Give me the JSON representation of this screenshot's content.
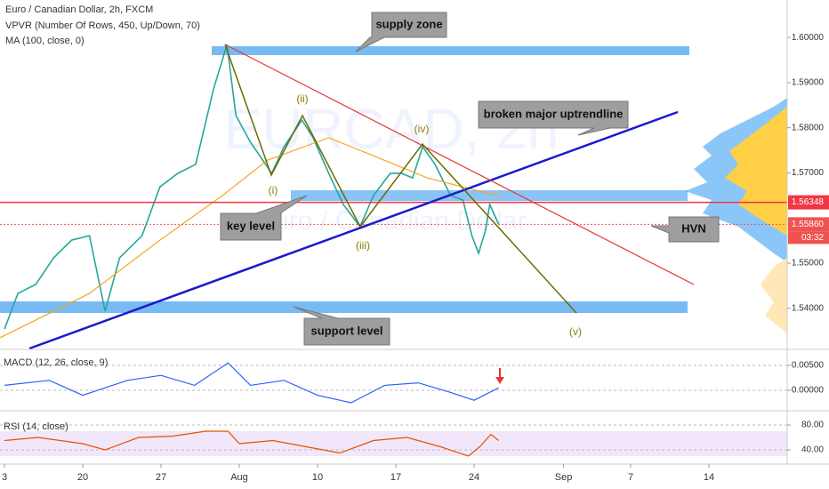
{
  "chart_data": [
    {
      "type": "line",
      "title": "Euro / Canadian Dollar, 2h, FXCM",
      "indicators": [
        "VPVR (Number Of Rows, 450, Up/Down, 70)",
        "MA (100, close, 0)"
      ],
      "watermark": [
        "EURCAD, 2h",
        "Euro / Canadian Dollar"
      ],
      "xlim": [
        12.6,
        83
      ],
      "xticks": [
        {
          "value": 13,
          "label": "3"
        },
        20,
        27,
        {
          "value": 34,
          "label": "Aug"
        },
        {
          "value": 41,
          "label": "10"
        },
        {
          "value": 48,
          "label": "17"
        },
        {
          "value": 55,
          "label": "24"
        },
        {
          "value": 63,
          "label": "Sep"
        },
        {
          "value": 69,
          "label": "7"
        },
        {
          "value": 76,
          "label": "14"
        }
      ],
      "ylim": [
        1.5311,
        1.6083
      ],
      "yticks": [
        {
          "value": 1.6,
          "label": "1.60000"
        },
        {
          "value": 1.59,
          "label": "1.59000"
        },
        {
          "value": 1.58,
          "label": "1.58000"
        },
        {
          "value": 1.57,
          "label": "1.57000"
        },
        {
          "value": 1.55,
          "label": "1.55000"
        },
        {
          "value": 1.54,
          "label": "1.54000"
        }
      ],
      "price_tags": [
        {
          "value": 1.56348,
          "label": "1.56348",
          "color": "#f23645"
        },
        {
          "value": 1.5586,
          "label": "1.55860",
          "color": "#ef5350"
        }
      ],
      "countdown": "03:32",
      "annotations": [
        "supply zone",
        "broken major uptrendline",
        "key level",
        "HVN",
        "support level"
      ],
      "wave_labels": [
        "(i)",
        "(ii)",
        "(iii)",
        "(iv)",
        "(v)"
      ],
      "series": [
        {
          "color": "#26a69a",
          "x": [
            13.0,
            14.2,
            15.8,
            17.4,
            19.0,
            20.6,
            22.0,
            23.3,
            25.3,
            26.9,
            28.5,
            30.1,
            31.7,
            32.9,
            33.7,
            35.0,
            36.9,
            38.0,
            39.6,
            40.6,
            42.0,
            43.3,
            44.8,
            46.0,
            47.5,
            48.5,
            49.5,
            50.4,
            51.5,
            52.9,
            54.0,
            54.8,
            55.4,
            56.0,
            56.4,
            57.2
          ],
          "values": [
            1.5354,
            1.5433,
            1.5453,
            1.5512,
            1.5551,
            1.5561,
            1.5394,
            1.5512,
            1.5561,
            1.5669,
            1.5699,
            1.5719,
            1.5886,
            1.5984,
            1.5827,
            1.5768,
            1.5699,
            1.5758,
            1.5817,
            1.5778,
            1.5699,
            1.563,
            1.5581,
            1.565,
            1.5699,
            1.5699,
            1.5689,
            1.5758,
            1.5719,
            1.565,
            1.564,
            1.5561,
            1.5522,
            1.5571,
            1.563,
            1.5586
          ]
        },
        {
          "color": "#f5a623",
          "x": [
            12.6,
            20.6,
            26.9,
            32.5,
            36.5,
            42.0,
            46.0,
            50.8,
            55.6,
            57.2
          ],
          "values": [
            1.5335,
            1.5433,
            1.5551,
            1.565,
            1.5728,
            1.5778,
            1.5738,
            1.5689,
            1.5659,
            1.565
          ]
        }
      ]
    },
    {
      "type": "line",
      "title": "MACD (12, 26, close, 9)",
      "ylim": [
        -0.00375,
        0.00786
      ],
      "yticks": [
        {
          "value": 0.005,
          "label": "0.00500"
        },
        {
          "value": 0,
          "label": "0.00000"
        }
      ],
      "series": [
        {
          "color": "#2962ff",
          "x": [
            13,
            17,
            20,
            24,
            27,
            30,
            33,
            35,
            38,
            41,
            44,
            47,
            50,
            53,
            55,
            57.2
          ],
          "values": [
            0.001,
            0.002,
            -0.001,
            0.002,
            0.003,
            0.001,
            0.0055,
            0.001,
            0.002,
            -0.001,
            -0.0025,
            0.001,
            0.0015,
            -0.0005,
            -0.002,
            0.0005
          ]
        }
      ]
    },
    {
      "type": "line",
      "title": "RSI (14, close)",
      "ylim": [
        20,
        98.6
      ],
      "yticks": [
        {
          "value": 80,
          "label": "80.00"
        },
        {
          "value": 40,
          "label": "40.00"
        }
      ],
      "band": [
        30,
        70
      ],
      "series": [
        {
          "color": "#e65100",
          "x": [
            13,
            16,
            20,
            22,
            25,
            28,
            31,
            33,
            34,
            37,
            40,
            43,
            46,
            49,
            52,
            54.5,
            55.5,
            56.5,
            57.2
          ],
          "values": [
            55,
            60,
            50,
            40,
            60,
            62,
            70,
            70,
            50,
            55,
            45,
            35,
            55,
            60,
            45,
            30,
            45,
            65,
            55
          ]
        }
      ]
    }
  ]
}
